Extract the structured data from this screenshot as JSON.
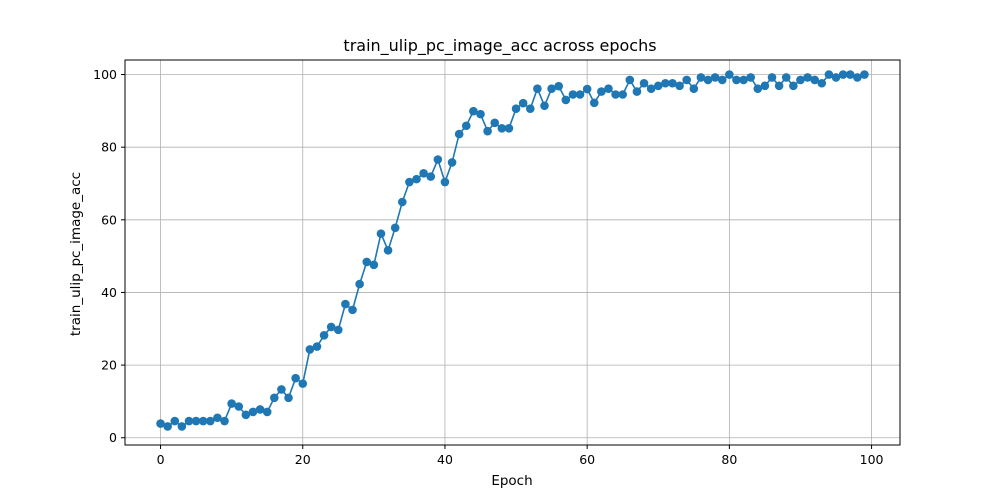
{
  "chart_data": {
    "type": "line",
    "title": "train_ulip_pc_image_acc across epochs",
    "xlabel": "Epoch",
    "ylabel": "train_ulip_pc_image_acc",
    "xlim": [
      -5,
      104
    ],
    "ylim": [
      -2,
      104
    ],
    "xticks": [
      0,
      20,
      40,
      60,
      80,
      100
    ],
    "yticks": [
      0,
      20,
      40,
      60,
      80,
      100
    ],
    "grid": true,
    "marker": "circle",
    "colors": {
      "series": "#1f77b4",
      "grid": "#b0b0b0",
      "axes": "#000000"
    },
    "series": [
      {
        "x": [
          0,
          1,
          2,
          3,
          4,
          5,
          6,
          7,
          8,
          9,
          10,
          11,
          12,
          13,
          14,
          15,
          16,
          17,
          18,
          19,
          20,
          21,
          22,
          23,
          24,
          25,
          26,
          27,
          28,
          29,
          30,
          31,
          32,
          33,
          34,
          35,
          36,
          37,
          38,
          39,
          40,
          41,
          42,
          43,
          44,
          45,
          46,
          47,
          48,
          49,
          50,
          51,
          52,
          53,
          54,
          55,
          56,
          57,
          58,
          59,
          60,
          61,
          62,
          63,
          64,
          65,
          66,
          67,
          68,
          69,
          70,
          71,
          72,
          73,
          74,
          75,
          76,
          77,
          78,
          79,
          80,
          81,
          82,
          83,
          84,
          85,
          86,
          87,
          88,
          89,
          90,
          91,
          92,
          93,
          94,
          95,
          96,
          97,
          98,
          99
        ],
        "values": [
          3.9,
          3.1,
          4.6,
          3.1,
          4.6,
          4.6,
          4.6,
          4.6,
          5.5,
          4.6,
          9.4,
          8.6,
          6.3,
          7.1,
          7.8,
          7.1,
          11.0,
          13.3,
          11.0,
          16.4,
          14.9,
          24.3,
          25.1,
          28.2,
          30.5,
          29.7,
          36.8,
          35.2,
          42.3,
          48.4,
          47.6,
          56.2,
          51.6,
          57.8,
          64.9,
          70.4,
          71.2,
          72.8,
          71.9,
          76.6,
          70.4,
          75.8,
          83.6,
          85.9,
          89.9,
          89.1,
          84.4,
          86.7,
          85.2,
          85.2,
          90.6,
          92.1,
          90.6,
          96.1,
          91.4,
          96.1,
          96.8,
          93.0,
          94.5,
          94.5,
          96.0,
          92.2,
          95.3,
          96.1,
          94.5,
          94.5,
          98.5,
          95.3,
          97.6,
          96.1,
          96.9,
          97.6,
          97.6,
          96.9,
          98.5,
          96.1,
          99.2,
          98.5,
          99.2,
          98.5,
          100.0,
          98.5,
          98.5,
          99.2,
          96.1,
          96.9,
          99.2,
          96.9,
          99.2,
          96.9,
          98.5,
          99.2,
          98.5,
          97.6,
          100.0,
          99.2,
          100.0,
          100.0,
          99.2,
          100.0
        ]
      }
    ]
  }
}
